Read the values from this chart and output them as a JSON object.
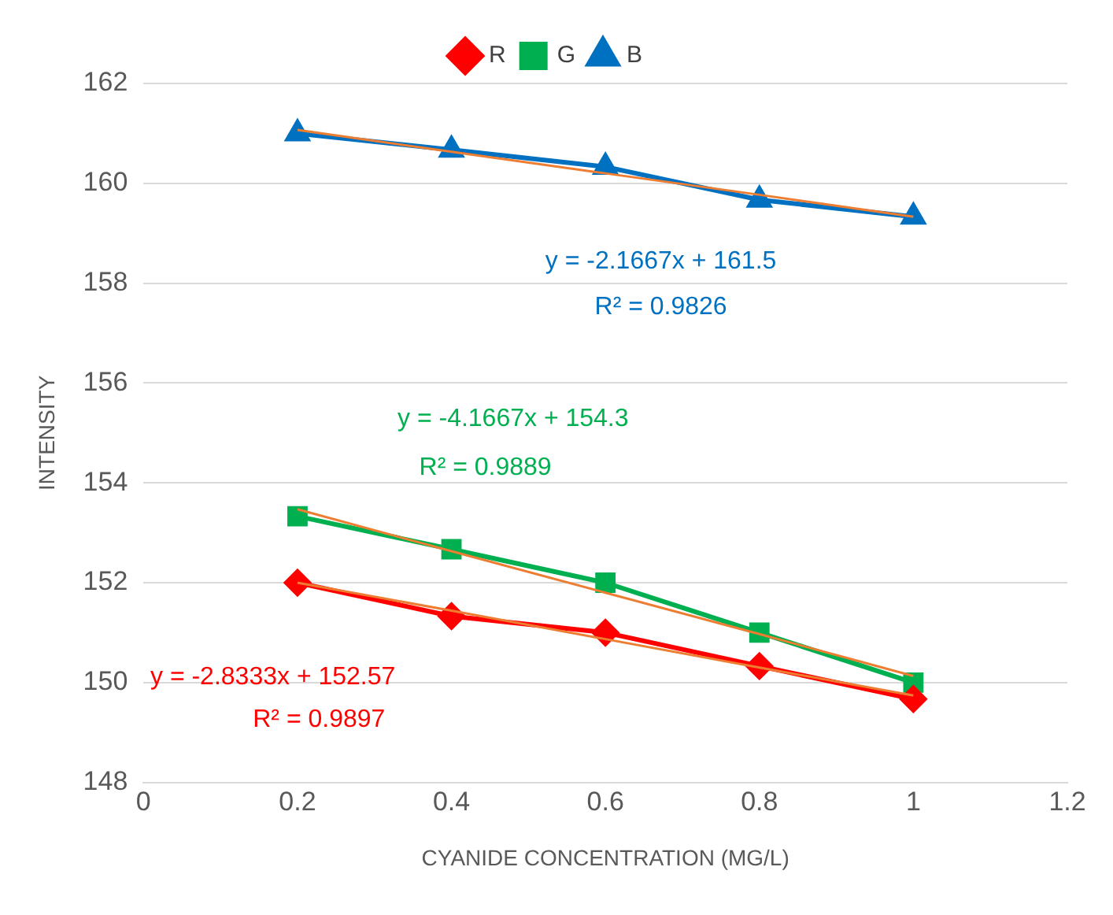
{
  "chart_data": {
    "type": "line",
    "xlabel": "CYANIDE CONCENTRATION (MG/L)",
    "ylabel": "INTENSITY",
    "x": [
      0.2,
      0.4,
      0.6,
      0.8,
      1
    ],
    "series": [
      {
        "name": "R",
        "color": "#ff0000",
        "marker": "diamond",
        "values": [
          152,
          151.33,
          151,
          150.33,
          149.67
        ]
      },
      {
        "name": "G",
        "color": "#00b050",
        "marker": "square",
        "values": [
          153.33,
          152.67,
          152,
          151,
          150
        ]
      },
      {
        "name": "B",
        "color": "#0070c0",
        "marker": "triangle",
        "values": [
          161,
          160.67,
          160.33,
          159.67,
          159.33
        ]
      },
      {
        "type": "line",
        "color": "#ed7d31",
        "marker": "none",
        "values": [
          152,
          151.44,
          150.87,
          150.3,
          149.74
        ]
      },
      {
        "type": "line",
        "color": "#ed7d31",
        "marker": "none",
        "values": [
          153.47,
          152.63,
          151.8,
          150.97,
          150.13
        ]
      },
      {
        "type": "line",
        "color": "#ed7d31",
        "marker": "none",
        "values": [
          161.07,
          160.63,
          160.2,
          159.77,
          159.33
        ]
      }
    ],
    "annotations": [
      "y = -2.8333x + 152.57",
      "R² = 0.9897",
      "y = -4.1667x + 154.3",
      "R² = 0.9889",
      "y = -2.1667x + 161.5",
      "R² = 0.9826"
    ],
    "xlim": [
      0,
      1.2
    ],
    "xticks": [
      0,
      0.2,
      0.4,
      0.6,
      0.8,
      1,
      1.2
    ],
    "ylim": [
      148,
      162
    ],
    "yticks": [
      148,
      150,
      152,
      154,
      156,
      158,
      160,
      162
    ],
    "grid": "y",
    "legend": "top"
  }
}
